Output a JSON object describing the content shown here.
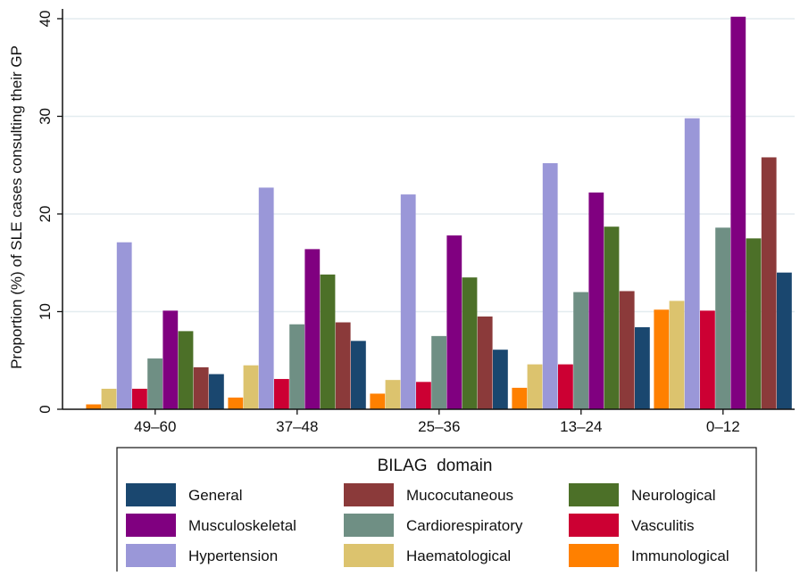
{
  "chart_data": {
    "type": "bar",
    "title": "",
    "xlabel": "",
    "ylabel": "Proportion (%) of SLE cases consulting their GP",
    "ylim": [
      0,
      41
    ],
    "yticks": [
      0,
      10,
      20,
      30,
      40
    ],
    "grid": true,
    "legend_title": "BILAG  domain",
    "legend_position": "bottom",
    "categories": [
      "49–60",
      "37–48",
      "25–36",
      "13–24",
      "0–12"
    ],
    "series": [
      {
        "name": "Immunological",
        "color": "#ff8000",
        "values": [
          0.5,
          1.2,
          1.6,
          2.2,
          10.2
        ]
      },
      {
        "name": "Haematological",
        "color": "#dcc36e",
        "values": [
          2.1,
          4.5,
          3.0,
          4.6,
          11.1
        ]
      },
      {
        "name": "Hypertension",
        "color": "#9a97d8",
        "values": [
          17.1,
          22.7,
          22.0,
          25.2,
          29.8
        ]
      },
      {
        "name": "Vasculitis",
        "color": "#cc0033",
        "values": [
          2.1,
          3.1,
          2.8,
          4.6,
          10.1
        ]
      },
      {
        "name": "Cardiorespiratory",
        "color": "#6f8f84",
        "values": [
          5.2,
          8.7,
          7.5,
          12.0,
          18.6
        ]
      },
      {
        "name": "Musculoskeletal",
        "color": "#800080",
        "values": [
          10.1,
          16.4,
          17.8,
          22.2,
          40.2
        ]
      },
      {
        "name": "Neurological",
        "color": "#4c7028",
        "values": [
          8.0,
          13.8,
          13.5,
          18.7,
          17.5
        ]
      },
      {
        "name": "Mucocutaneous",
        "color": "#8b3a3a",
        "values": [
          4.3,
          8.9,
          9.5,
          12.1,
          25.8
        ]
      },
      {
        "name": "General",
        "color": "#1a476f",
        "values": [
          3.6,
          7.0,
          6.1,
          8.4,
          14.0
        ]
      }
    ],
    "legend_order": [
      "General",
      "Mucocutaneous",
      "Neurological",
      "Musculoskeletal",
      "Cardiorespiratory",
      "Vasculitis",
      "Hypertension",
      "Haematological",
      "Immunological"
    ]
  }
}
